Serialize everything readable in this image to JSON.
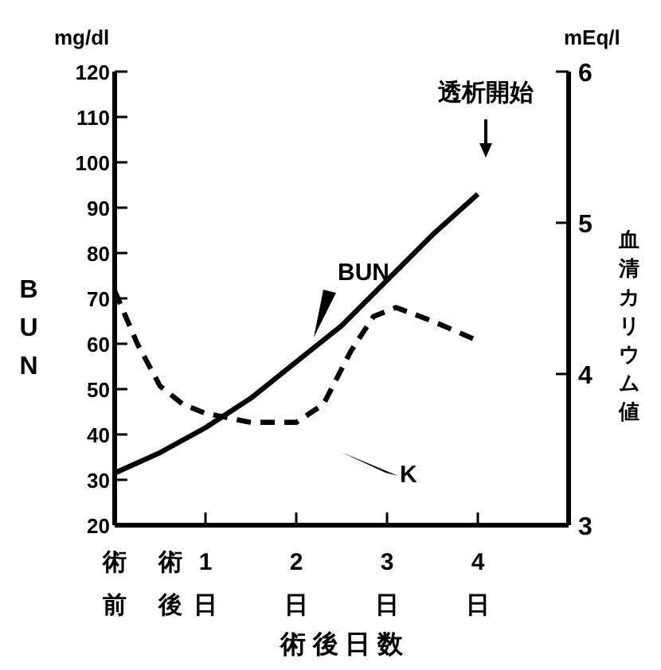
{
  "chart_data": {
    "type": "line",
    "xlabel": "術後日数",
    "ylabel": "BUN",
    "y2label": "血清カリウム値",
    "xlim": [
      0,
      5
    ],
    "xticks": [
      {
        "value": 0,
        "label": "術前"
      },
      {
        "value": 1,
        "label": "術後1日"
      },
      {
        "value": 2,
        "label": "2日"
      },
      {
        "value": 3,
        "label": "3日"
      },
      {
        "value": 4,
        "label": "4日"
      }
    ],
    "ylim": [
      20,
      120
    ],
    "yticks": [
      20,
      30,
      40,
      50,
      60,
      70,
      80,
      90,
      100,
      110,
      120
    ],
    "y2lim": [
      3,
      6
    ],
    "y2ticks": [
      3,
      4,
      5,
      6
    ],
    "series": [
      {
        "name": "BUN",
        "color": "#000000",
        "line_style": "solid",
        "x": [
          0,
          0.5,
          1,
          1.5,
          2,
          2.5,
          3,
          3.5,
          4
        ],
        "values": [
          31.5,
          36,
          41.5,
          48,
          56,
          64,
          74,
          84,
          93
        ]
      },
      {
        "name": "K",
        "color": "#000000",
        "line_style": "dashed",
        "axis": "y2",
        "x": [
          0,
          0.25,
          0.5,
          0.75,
          1,
          1.5,
          2,
          2.3,
          2.6,
          2.85,
          3.1,
          3.5,
          4
        ],
        "values": [
          4.55,
          4.2,
          3.92,
          3.8,
          3.74,
          3.68,
          3.68,
          3.8,
          4.15,
          4.38,
          4.44,
          4.35,
          4.22
        ]
      }
    ],
    "annotations": [
      "mg/dl",
      "mEq/l",
      "透析開始"
    ]
  }
}
